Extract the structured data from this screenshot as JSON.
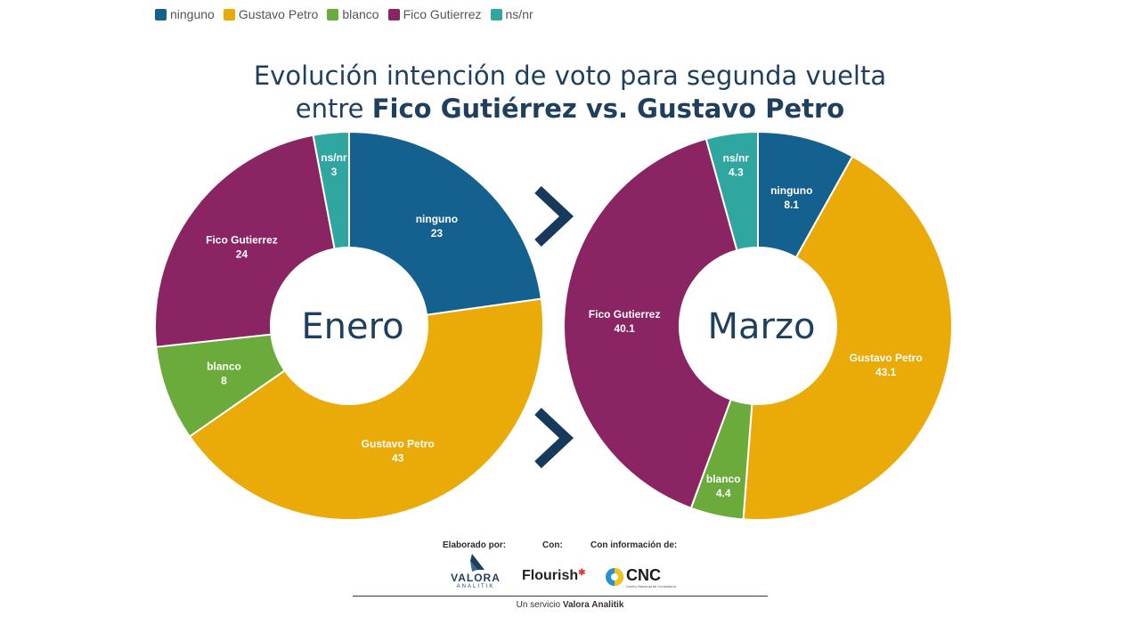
{
  "colors": {
    "ninguno": "#14608f",
    "Gustavo Petro": "#eaaa08",
    "blanco": "#6aab3c",
    "Fico Gutierrez": "#8b2463",
    "ns/nr": "#2fa6a0",
    "title": "#1f3f5e",
    "arrow": "#173a5c"
  },
  "legend": [
    {
      "label": "ninguno",
      "color": "#14608f"
    },
    {
      "label": "Gustavo Petro",
      "color": "#eaaa08"
    },
    {
      "label": "blanco",
      "color": "#6aab3c"
    },
    {
      "label": "Fico Gutierrez",
      "color": "#8b2463"
    },
    {
      "label": "ns/nr",
      "color": "#2fa6a0"
    }
  ],
  "title": {
    "line1": "Evolución intención de voto para segunda vuelta",
    "line2_prefix": "entre ",
    "line2_bold": "Fico Gutiérrez vs. Gustavo Petro"
  },
  "chart_data": [
    {
      "type": "pie",
      "title": "Enero",
      "categories": [
        "ninguno",
        "Gustavo Petro",
        "blanco",
        "Fico Gutierrez",
        "ns/nr"
      ],
      "values": [
        23,
        43,
        8,
        24,
        3
      ]
    },
    {
      "type": "pie",
      "title": "Marzo",
      "categories": [
        "ninguno",
        "Gustavo Petro",
        "blanco",
        "Fico Gutierrez",
        "ns/nr"
      ],
      "values": [
        8.1,
        43.1,
        4.4,
        40.1,
        4.3
      ]
    }
  ],
  "footer": {
    "elaborado": "Elaborado por:",
    "con": "Con:",
    "con_info": "Con información de:",
    "valora_main": "VALORA",
    "valora_sub": "ANALITIK",
    "flourish": "Flourish",
    "cnc": "CNC",
    "cnc_sub": "Centro Nacional de Consultoría",
    "service_prefix": "Un servicio ",
    "service_bold": "Valora Analitik"
  }
}
